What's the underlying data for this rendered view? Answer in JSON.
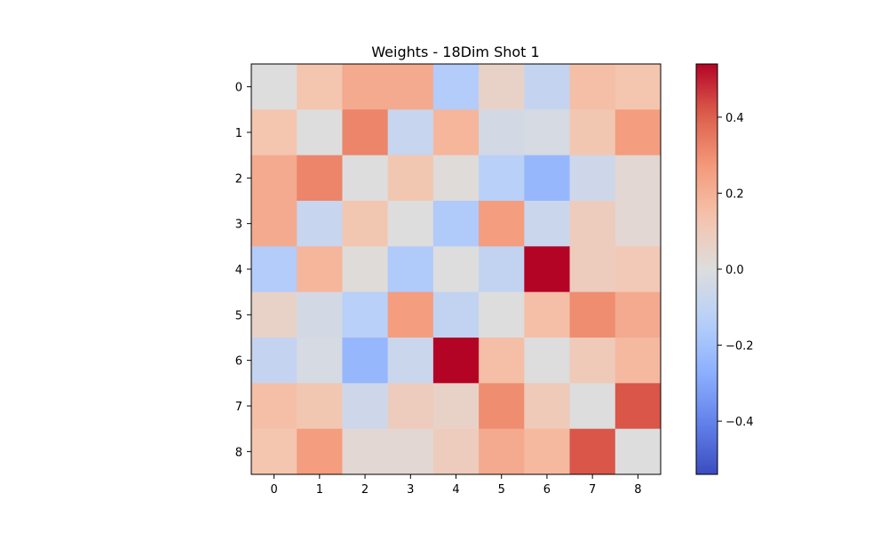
{
  "chart_data": {
    "type": "heatmap",
    "title": "Weights - 18Dim Shot 1",
    "xlabel": "",
    "ylabel": "",
    "x_tick_labels": [
      "0",
      "1",
      "2",
      "3",
      "4",
      "5",
      "6",
      "7",
      "8"
    ],
    "y_tick_labels": [
      "0",
      "1",
      "2",
      "3",
      "4",
      "5",
      "6",
      "7",
      "8"
    ],
    "colormap": "coolwarm",
    "vmin": -0.54,
    "vmax": 0.54,
    "colorbar_ticks": [
      -0.4,
      -0.2,
      0.0,
      0.2,
      0.4
    ],
    "colorbar_tick_labels": [
      "−0.4",
      "−0.2",
      "0.0",
      "0.2",
      "0.4"
    ],
    "values": [
      [
        0.0,
        0.13,
        0.22,
        0.22,
        -0.15,
        0.06,
        -0.09,
        0.15,
        0.13
      ],
      [
        0.13,
        0.0,
        0.32,
        -0.08,
        0.18,
        -0.04,
        -0.03,
        0.12,
        0.26
      ],
      [
        0.22,
        0.32,
        0.0,
        0.12,
        0.01,
        -0.13,
        -0.24,
        -0.06,
        0.03
      ],
      [
        0.22,
        -0.08,
        0.12,
        0.0,
        -0.16,
        0.26,
        -0.07,
        0.09,
        0.03
      ],
      [
        -0.15,
        0.18,
        0.01,
        -0.16,
        0.0,
        -0.1,
        0.54,
        0.09,
        0.11
      ],
      [
        0.06,
        -0.04,
        -0.13,
        0.26,
        -0.1,
        0.0,
        0.15,
        0.3,
        0.22
      ],
      [
        -0.09,
        -0.03,
        -0.24,
        -0.07,
        0.54,
        0.15,
        0.0,
        0.1,
        0.17
      ],
      [
        0.15,
        0.12,
        -0.06,
        0.09,
        0.06,
        0.3,
        0.1,
        0.0,
        0.42
      ],
      [
        0.13,
        0.26,
        0.03,
        0.03,
        0.09,
        0.22,
        0.17,
        0.42,
        0.0
      ]
    ]
  }
}
